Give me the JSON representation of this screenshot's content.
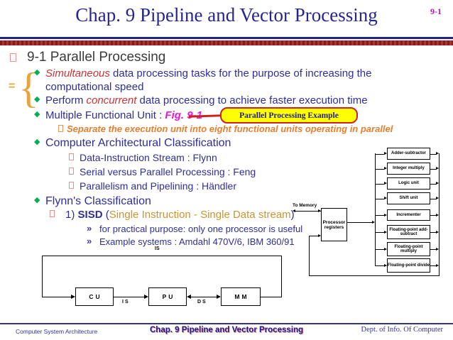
{
  "header": {
    "title": "Chap. 9  Pipeline and Vector Processing",
    "page_number": "9-1"
  },
  "content": {
    "section_heading": "9-1  Parallel Processing",
    "equals_sign": "=",
    "brace": "{",
    "bullet1": {
      "em": "Simultaneous",
      "rest": " data processing tasks for the purpose of increasing the computational speed"
    },
    "bullet2": {
      "pre": "Perform ",
      "em": "concurrent",
      "rest": " data processing to achieve faster execution time"
    },
    "bullet3": {
      "pre": "Multiple Functional Unit : ",
      "fig": "Fig. 9-1"
    },
    "badge_label": "Parallel Processing Example",
    "sub_orange": "Separate the execution unit into eight functional units operating in parallel",
    "bullet4": "Computer Architectural Classification",
    "classification_items": [
      "Data-Instruction Stream : Flynn",
      "Serial versus Parallel Processing : Feng",
      "Parallelism and Pipelining : Händler"
    ],
    "bullet5": "Flynn's Classification",
    "sisd": {
      "num": "1) ",
      "name": "SISD",
      "open": " (",
      "paren_text": "Single Instruction - Single Data stream",
      "close": ")"
    },
    "sisd_points": [
      "for practical purpose: only one processor is useful",
      "Example systems : Amdahl 470V/6,  IBM 360/91"
    ],
    "point_marker": "»",
    "diamond_glyph": "◆"
  },
  "sisd_diagram": {
    "top_label": "IS",
    "cu": "CU",
    "pu": "PU",
    "mm": "MM",
    "is_label": "IS",
    "ds_label": "DS"
  },
  "fig_diagram": {
    "to_memory": "To Memory",
    "processor_box": "Processor registers",
    "units": [
      "Adder-subtractor",
      "Integer multiply",
      "Logic unit",
      "Shift unit",
      "Incrementer",
      "Floating-point add-subtract",
      "Floating-point multiply",
      "Floating-point divide"
    ]
  },
  "footer": {
    "left": "Computer System Architecture",
    "center": "Chap. 9  Pipeline and Vector Processing",
    "right": "Dept. of  Info. Of Computer"
  },
  "colors": {
    "title_navy": "#26268C",
    "body_navy": "#2E2E99",
    "page_number_magenta": "#B913B9",
    "emphasis_red": "#CC3333",
    "orange": "#E87E2B",
    "gold": "#C99433",
    "fig_magenta": "#E515E5",
    "diamond_green": "#00B050",
    "badge_yellow": "#FFFF00",
    "badge_border_red": "#CC2222",
    "rule_navy": "#242484",
    "rule_red": "#8B1A1A"
  }
}
